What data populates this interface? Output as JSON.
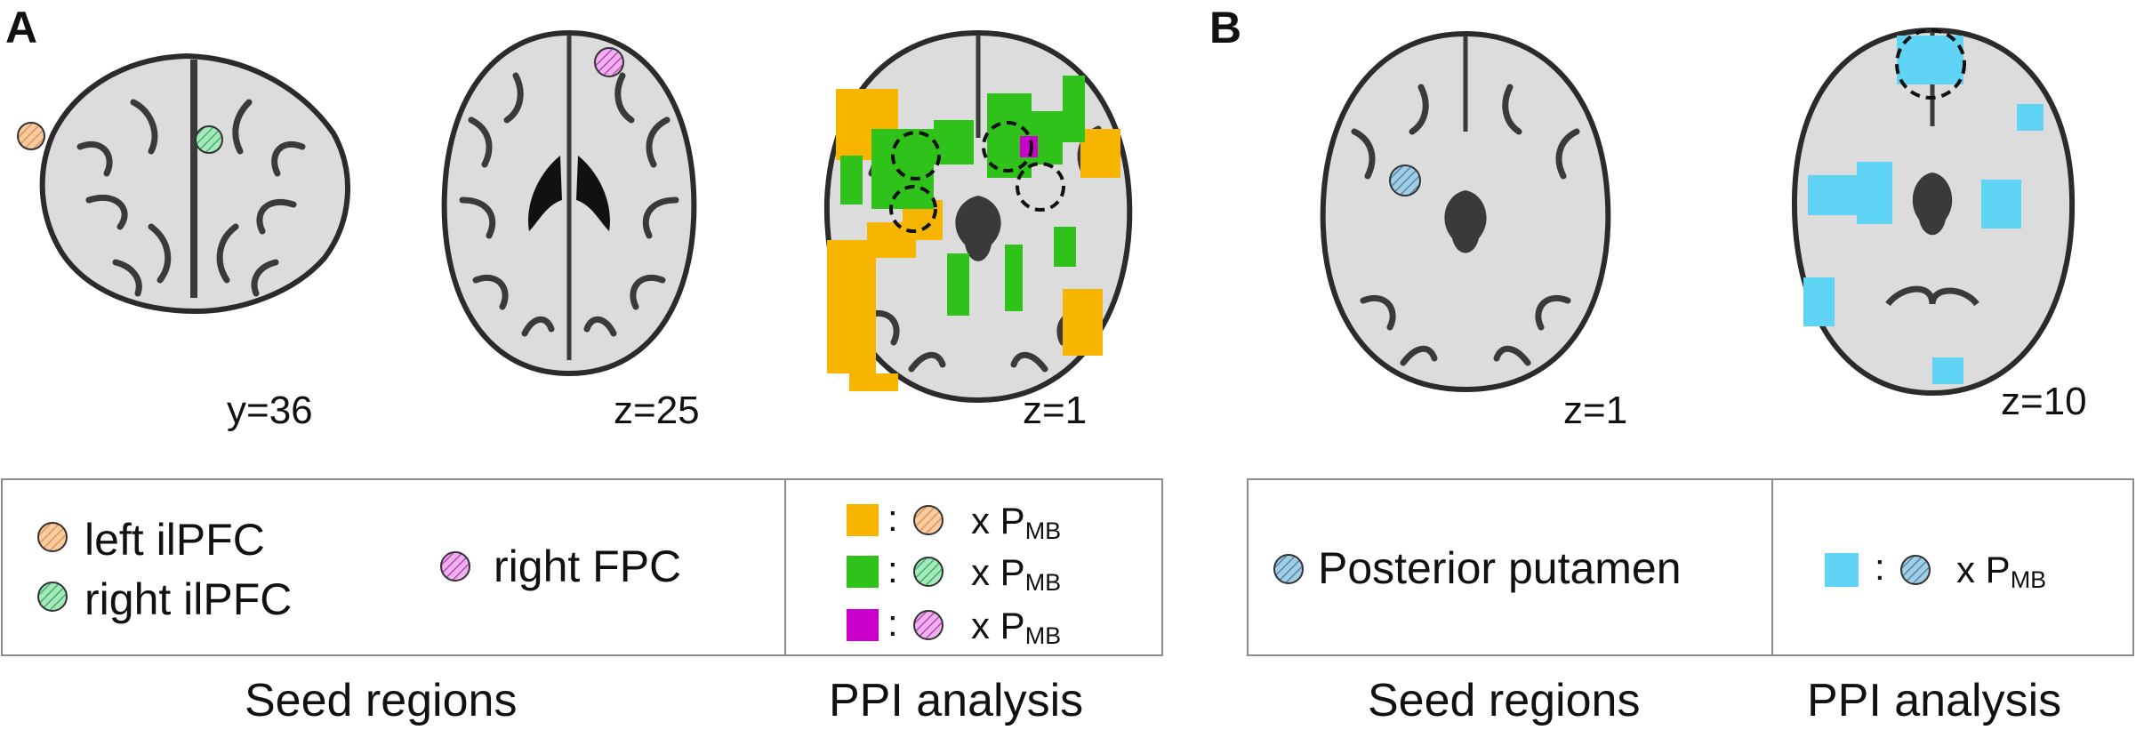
{
  "panel_a": {
    "letter": "A",
    "slices": [
      {
        "label": "y=36"
      },
      {
        "label": "z=25"
      },
      {
        "label": "z=1"
      }
    ],
    "legend": {
      "seeds": [
        {
          "label": "left ilPFC",
          "color": "#f4b27a"
        },
        {
          "label": "right ilPFC",
          "color": "#55c77e"
        },
        {
          "label": "right FPC",
          "color": "#cc4fc9"
        }
      ],
      "ppi_rows": [
        {
          "square_color": "#f7b500",
          "seed_color": "#f4b27a",
          "colon": ":",
          "x": "x",
          "p": "P",
          "sub": "MB"
        },
        {
          "square_color": "#2ec21a",
          "seed_color": "#55c77e",
          "colon": ":",
          "x": "x",
          "p": "P",
          "sub": "MB"
        },
        {
          "square_color": "#cc00cc",
          "seed_color": "#cc4fc9",
          "colon": ":",
          "x": "x",
          "p": "P",
          "sub": "MB"
        }
      ]
    },
    "captions": {
      "seed": "Seed regions",
      "ppi": "PPI analysis"
    }
  },
  "panel_b": {
    "letter": "B",
    "slices": [
      {
        "label": "z=1"
      },
      {
        "label": "z=10"
      }
    ],
    "legend": {
      "seed": {
        "label": "Posterior putamen",
        "color": "#5b9ec0"
      },
      "ppi_row": {
        "square_color": "#5fd4f5",
        "seed_color": "#5b9ec0",
        "colon": ":",
        "x": "x",
        "p": "P",
        "sub": "MB"
      }
    },
    "captions": {
      "seed": "Seed regions",
      "ppi": "PPI analysis"
    }
  },
  "colors": {
    "brain_tissue": "#dcdcdc",
    "sulci": "#3a3a3a",
    "ventricle": "#111111",
    "orange_activation": "#f7b500",
    "green_activation": "#2ec21a",
    "magenta_activation": "#cc00cc",
    "cyan_activation": "#5fd4f5",
    "legend_border": "#8c8c8c"
  }
}
